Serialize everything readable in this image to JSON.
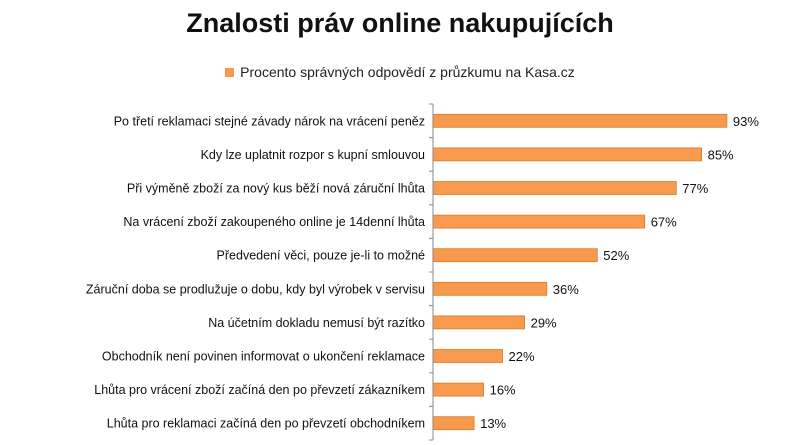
{
  "chart_data": {
    "type": "bar",
    "orientation": "horizontal",
    "title": "Znalosti práv online nakupujících",
    "legend": {
      "placement": "top",
      "label": "Procento správných odpovědí z průzkumu na Kasa.cz"
    },
    "bar_color": "#F79A4E",
    "bar_border_color": "#E07C2A",
    "axis_color": "#888888",
    "grid": false,
    "xlim": [
      0,
      100
    ],
    "value_suffix": "%",
    "categories": [
      "Po třetí reklamaci stejné závady nárok na vrácení peněz",
      "Kdy lze uplatnit rozpor s kupní smlouvou",
      "Při výměně zboží za nový kus běží nová záruční lhůta",
      "Na vrácení zboží zakoupeného online je 14denní lhůta",
      "Předvedení věci, pouze je-li to možné",
      "Záruční doba se prodlužuje o dobu, kdy byl výrobek v servisu",
      "Na účetním dokladu nemusí být razítko",
      "Obchodník není povinen informovat o ukončení reklamace",
      "Lhůta pro vrácení zboží začíná den po převzetí zákazníkem",
      "Lhůta pro reklamaci začíná den po převzetí obchodníkem"
    ],
    "series": [
      {
        "name": "Procento správných odpovědí z průzkumu na Kasa.cz",
        "values": [
          93,
          85,
          77,
          67,
          52,
          36,
          29,
          22,
          16,
          13
        ]
      }
    ],
    "value_labels": [
      "93%",
      "85%",
      "77%",
      "67%",
      "52%",
      "36%",
      "29%",
      "22%",
      "16%",
      "13%"
    ]
  }
}
